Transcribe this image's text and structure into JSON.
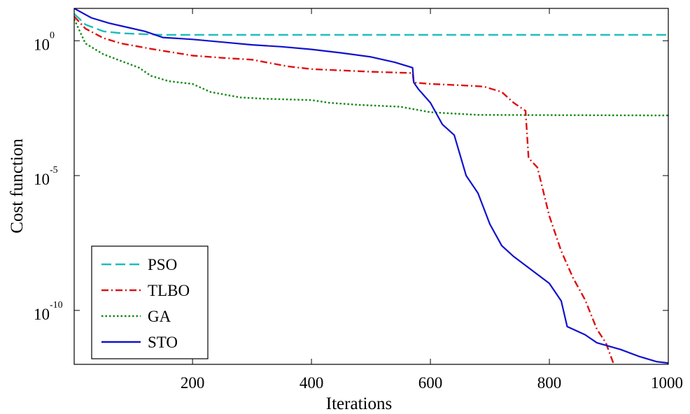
{
  "chart_data": {
    "type": "line",
    "title": "",
    "xlabel": "Iterations",
    "ylabel": "Cost function",
    "xlim": [
      1,
      1000
    ],
    "ylim_log10": [
      -12,
      1.2
    ],
    "y_scale": "log",
    "x_ticks": [
      200,
      400,
      600,
      800,
      1000
    ],
    "y_ticks": [
      {
        "exp": 0,
        "base": "10",
        "power": "0"
      },
      {
        "exp": -5,
        "base": "10",
        "power": "-5"
      },
      {
        "exp": -10,
        "base": "10",
        "power": "-10"
      }
    ],
    "legend_position": "bottom-left",
    "series": [
      {
        "name": "PSO",
        "color": "#1fbcbc",
        "dash": "dashed",
        "points_log10": [
          [
            1,
            1.0
          ],
          [
            20,
            0.6
          ],
          [
            50,
            0.35
          ],
          [
            80,
            0.28
          ],
          [
            110,
            0.25
          ],
          [
            150,
            0.22
          ],
          [
            1000,
            0.22
          ]
        ]
      },
      {
        "name": "TLBO",
        "color": "#dd1111",
        "dash": "dashdot",
        "points_log10": [
          [
            1,
            0.9
          ],
          [
            20,
            0.45
          ],
          [
            50,
            0.1
          ],
          [
            80,
            -0.1
          ],
          [
            130,
            -0.3
          ],
          [
            200,
            -0.55
          ],
          [
            260,
            -0.65
          ],
          [
            300,
            -0.7
          ],
          [
            360,
            -0.95
          ],
          [
            400,
            -1.05
          ],
          [
            450,
            -1.1
          ],
          [
            500,
            -1.15
          ],
          [
            570,
            -1.2
          ],
          [
            572,
            -1.55
          ],
          [
            600,
            -1.6
          ],
          [
            650,
            -1.65
          ],
          [
            690,
            -1.7
          ],
          [
            720,
            -1.9
          ],
          [
            740,
            -2.3
          ],
          [
            760,
            -2.6
          ],
          [
            765,
            -4.35
          ],
          [
            780,
            -4.7
          ],
          [
            800,
            -6.5
          ],
          [
            820,
            -7.8
          ],
          [
            840,
            -8.8
          ],
          [
            860,
            -9.6
          ],
          [
            880,
            -10.7
          ],
          [
            895,
            -11.2
          ],
          [
            910,
            -12.1
          ]
        ]
      },
      {
        "name": "GA",
        "color": "#118811",
        "dash": "dotted",
        "points_log10": [
          [
            1,
            0.8
          ],
          [
            20,
            -0.1
          ],
          [
            50,
            -0.5
          ],
          [
            80,
            -0.75
          ],
          [
            110,
            -1.0
          ],
          [
            130,
            -1.3
          ],
          [
            160,
            -1.5
          ],
          [
            200,
            -1.6
          ],
          [
            230,
            -1.9
          ],
          [
            280,
            -2.1
          ],
          [
            320,
            -2.15
          ],
          [
            400,
            -2.2
          ],
          [
            430,
            -2.3
          ],
          [
            480,
            -2.38
          ],
          [
            550,
            -2.45
          ],
          [
            600,
            -2.65
          ],
          [
            680,
            -2.75
          ],
          [
            1000,
            -2.77
          ]
        ]
      },
      {
        "name": "STO",
        "color": "#1111cc",
        "dash": "solid",
        "points_log10": [
          [
            1,
            1.2
          ],
          [
            30,
            0.85
          ],
          [
            60,
            0.65
          ],
          [
            90,
            0.5
          ],
          [
            120,
            0.35
          ],
          [
            150,
            0.12
          ],
          [
            200,
            0.05
          ],
          [
            250,
            -0.05
          ],
          [
            300,
            -0.15
          ],
          [
            350,
            -0.22
          ],
          [
            400,
            -0.32
          ],
          [
            450,
            -0.45
          ],
          [
            500,
            -0.6
          ],
          [
            540,
            -0.8
          ],
          [
            570,
            -1.0
          ],
          [
            572,
            -1.55
          ],
          [
            580,
            -1.8
          ],
          [
            600,
            -2.3
          ],
          [
            620,
            -3.1
          ],
          [
            640,
            -3.5
          ],
          [
            660,
            -5.0
          ],
          [
            680,
            -5.65
          ],
          [
            700,
            -6.8
          ],
          [
            720,
            -7.6
          ],
          [
            740,
            -8.0
          ],
          [
            770,
            -8.5
          ],
          [
            800,
            -9.0
          ],
          [
            820,
            -9.65
          ],
          [
            830,
            -10.6
          ],
          [
            860,
            -10.9
          ],
          [
            880,
            -11.2
          ],
          [
            920,
            -11.45
          ],
          [
            950,
            -11.7
          ],
          [
            980,
            -11.9
          ],
          [
            1000,
            -11.95
          ]
        ]
      }
    ]
  }
}
